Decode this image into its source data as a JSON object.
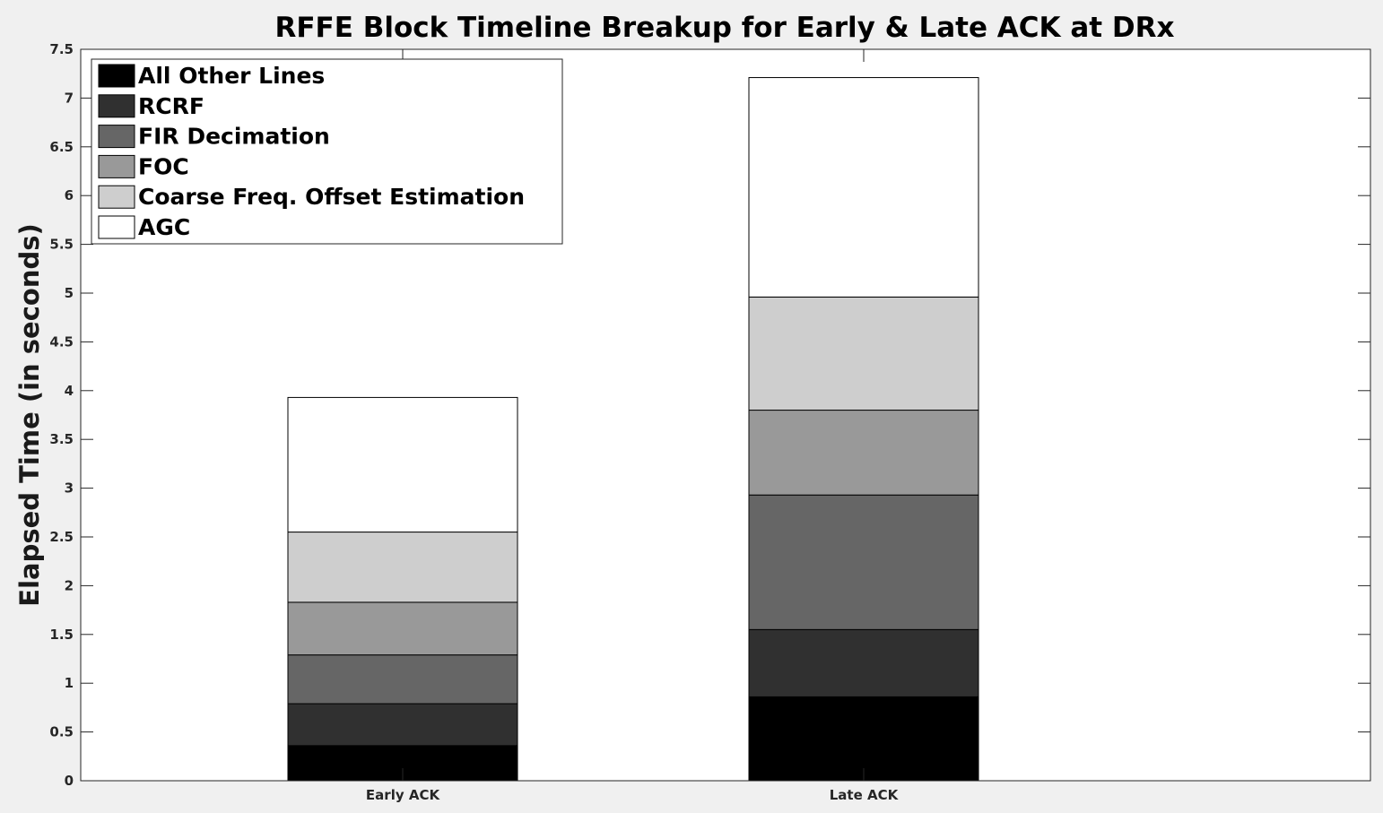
{
  "chart_data": {
    "type": "bar",
    "stacked": true,
    "title": "RFFE Block Timeline Breakup for Early & Late ACK at DRx",
    "xlabel": "",
    "ylabel": "Elapsed Time (in seconds)",
    "categories": [
      "Early ACK",
      "Late ACK"
    ],
    "ylim": [
      0,
      7.5
    ],
    "yticks": [
      "0",
      "0.5",
      "1",
      "1.5",
      "2",
      "2.5",
      "3",
      "3.5",
      "4",
      "4.5",
      "5",
      "5.5",
      "6",
      "6.5",
      "7",
      "7.5"
    ],
    "grid": false,
    "legend_position": "top-left",
    "series": [
      {
        "name": "All Other Lines",
        "color": "#000000",
        "values": [
          0.36,
          0.86
        ]
      },
      {
        "name": "RCRF",
        "color": "#303030",
        "values": [
          0.43,
          0.69
        ]
      },
      {
        "name": "FIR Decimation",
        "color": "#666666",
        "values": [
          0.5,
          1.38
        ]
      },
      {
        "name": "FOC",
        "color": "#999999",
        "values": [
          0.54,
          0.87
        ]
      },
      {
        "name": "Coarse Freq. Offset Estimation",
        "color": "#cecece",
        "values": [
          0.72,
          1.16
        ]
      },
      {
        "name": "AGC",
        "color": "#ffffff",
        "values": [
          1.38,
          2.25
        ]
      }
    ]
  }
}
